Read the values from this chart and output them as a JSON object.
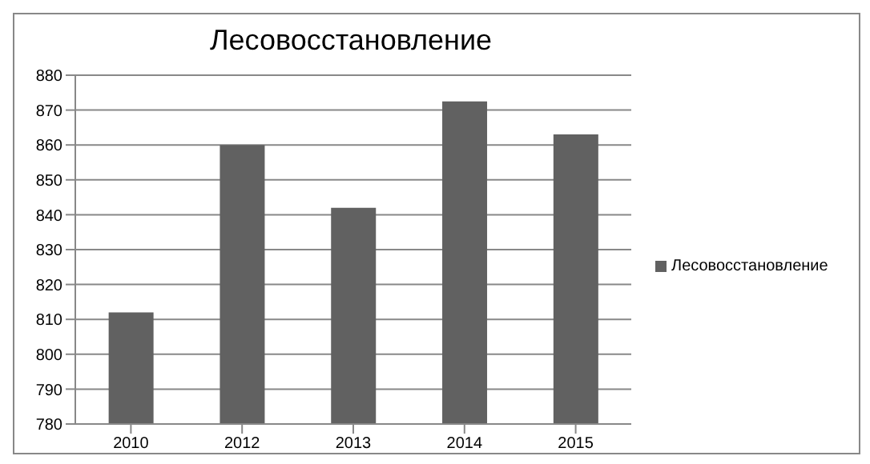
{
  "chart_data": {
    "type": "bar",
    "title": "Лесовосстановление",
    "categories": [
      "2010",
      "2012",
      "2013",
      "2014",
      "2015"
    ],
    "series": [
      {
        "name": "Лесовосстановление",
        "color": "#616161",
        "values": [
          812,
          860,
          842,
          872.5,
          863
        ]
      }
    ],
    "ylim": [
      780,
      880
    ],
    "yticks": [
      780,
      790,
      800,
      810,
      820,
      830,
      840,
      850,
      860,
      870,
      880
    ],
    "grid": "y",
    "legend": "right"
  }
}
